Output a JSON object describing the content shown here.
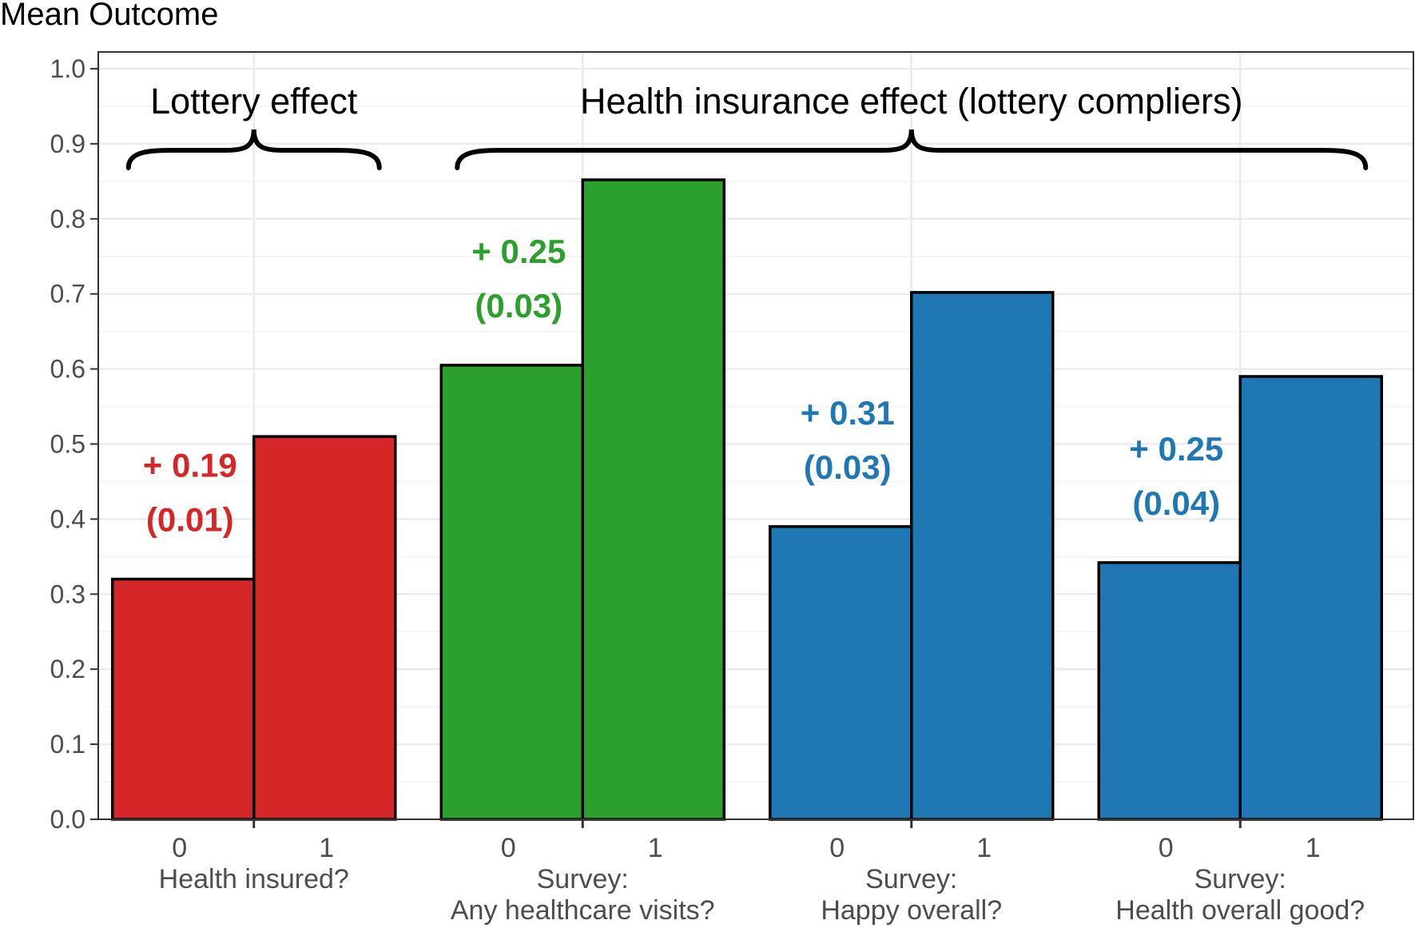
{
  "chart_data": {
    "type": "bar",
    "ylabel": "Mean Outcome",
    "ylim": [
      0,
      1
    ],
    "yticks": [
      "0.0",
      "0.1",
      "0.2",
      "0.3",
      "0.4",
      "0.5",
      "0.6",
      "0.7",
      "0.8",
      "0.9",
      "1.0"
    ],
    "grid": true,
    "groups": [
      {
        "label": "Health insured?",
        "levels": [
          "0",
          "1"
        ],
        "values": [
          0.32,
          0.51
        ],
        "color": "#d62728",
        "effect": "+ 0.19",
        "se": "(0.01)"
      },
      {
        "label": "Survey:\nAny healthcare visits?",
        "levels": [
          "0",
          "1"
        ],
        "values": [
          0.605,
          0.852
        ],
        "color": "#2ca02c",
        "effect": "+ 0.25",
        "se": "(0.03)"
      },
      {
        "label": "Survey:\nHappy overall?",
        "levels": [
          "0",
          "1"
        ],
        "values": [
          0.39,
          0.702
        ],
        "color": "#1f77b4",
        "effect": "+ 0.31",
        "se": "(0.03)"
      },
      {
        "label": "Survey:\nHealth overall good?",
        "levels": [
          "0",
          "1"
        ],
        "values": [
          0.342,
          0.59
        ],
        "color": "#1f77b4",
        "effect": "+ 0.25",
        "se": "(0.04)"
      }
    ],
    "annotations": [
      {
        "text": "Lottery effect",
        "groups": [
          0
        ]
      },
      {
        "text": "Health insurance effect (lottery compliers)",
        "groups": [
          1,
          2,
          3
        ]
      }
    ]
  }
}
